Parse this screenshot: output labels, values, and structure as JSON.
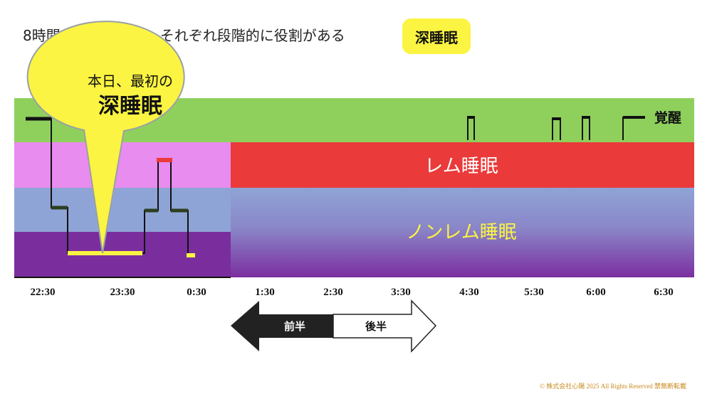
{
  "title": "8時間～の睡眠には、それぞれ段階的に役割がある",
  "highlight_tag": "深睡眠",
  "bands": {
    "awake_label": "覚醒",
    "rem_label": "レム睡眠",
    "nonrem_label": "ノンレム睡眠"
  },
  "callout": {
    "line1": "本日、最初の",
    "line2": "深睡眠"
  },
  "time_ticks": [
    "22:30",
    "23:30",
    "0:30",
    "1:30",
    "2:30",
    "3:30",
    "4:30",
    "5:30",
    "6:00",
    "6:30"
  ],
  "halves": {
    "first": "前半",
    "second": "後半"
  },
  "copyright": "© 株式会社心陽 2025 All Rights Reserved  禁無断転載",
  "colors": {
    "awake": "#8fd05d",
    "rem_light": "#e88cef",
    "rem": "#ea3a3a",
    "light_sleep": "#8fa4d6",
    "deep_sleep": "#7a2e9e",
    "callout": "#fbf442"
  }
}
